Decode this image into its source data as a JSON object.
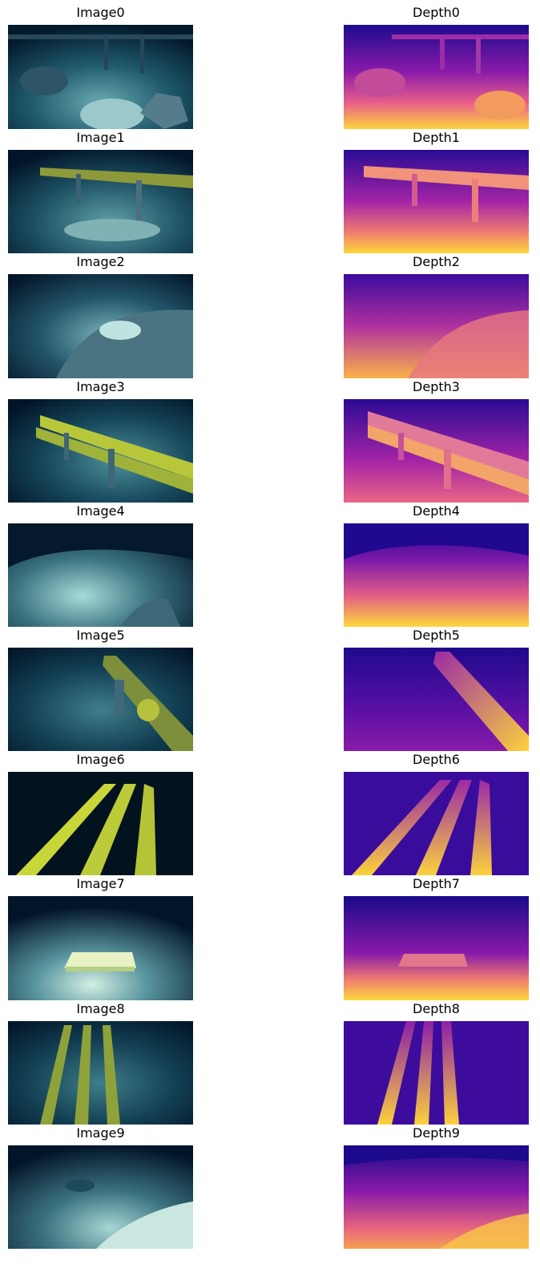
{
  "panels": [
    {
      "title": "Image0",
      "kind": "image"
    },
    {
      "title": "Depth0",
      "kind": "depth"
    },
    {
      "title": "Image1",
      "kind": "image"
    },
    {
      "title": "Depth1",
      "kind": "depth"
    },
    {
      "title": "Image2",
      "kind": "image"
    },
    {
      "title": "Depth2",
      "kind": "depth"
    },
    {
      "title": "Image3",
      "kind": "image"
    },
    {
      "title": "Depth3",
      "kind": "depth"
    },
    {
      "title": "Image4",
      "kind": "image"
    },
    {
      "title": "Depth4",
      "kind": "depth"
    },
    {
      "title": "Image5",
      "kind": "image"
    },
    {
      "title": "Depth5",
      "kind": "depth"
    },
    {
      "title": "Image6",
      "kind": "image"
    },
    {
      "title": "Depth6",
      "kind": "depth"
    },
    {
      "title": "Image7",
      "kind": "image"
    },
    {
      "title": "Depth7",
      "kind": "depth"
    },
    {
      "title": "Image8",
      "kind": "image"
    },
    {
      "title": "Depth8",
      "kind": "depth"
    },
    {
      "title": "Image9",
      "kind": "image"
    },
    {
      "title": "Depth9",
      "kind": "depth"
    }
  ],
  "colors": {
    "water_dark": "#021528",
    "water_mid": "#0d3a4e",
    "seabed": "#4c8a96",
    "seabed_light": "#a9e0dc",
    "pipe_yellow": "#c9d93a",
    "depth_far": "#1a0a8a",
    "depth_mid": "#a521a8",
    "depth_near": "#f8d53a"
  }
}
